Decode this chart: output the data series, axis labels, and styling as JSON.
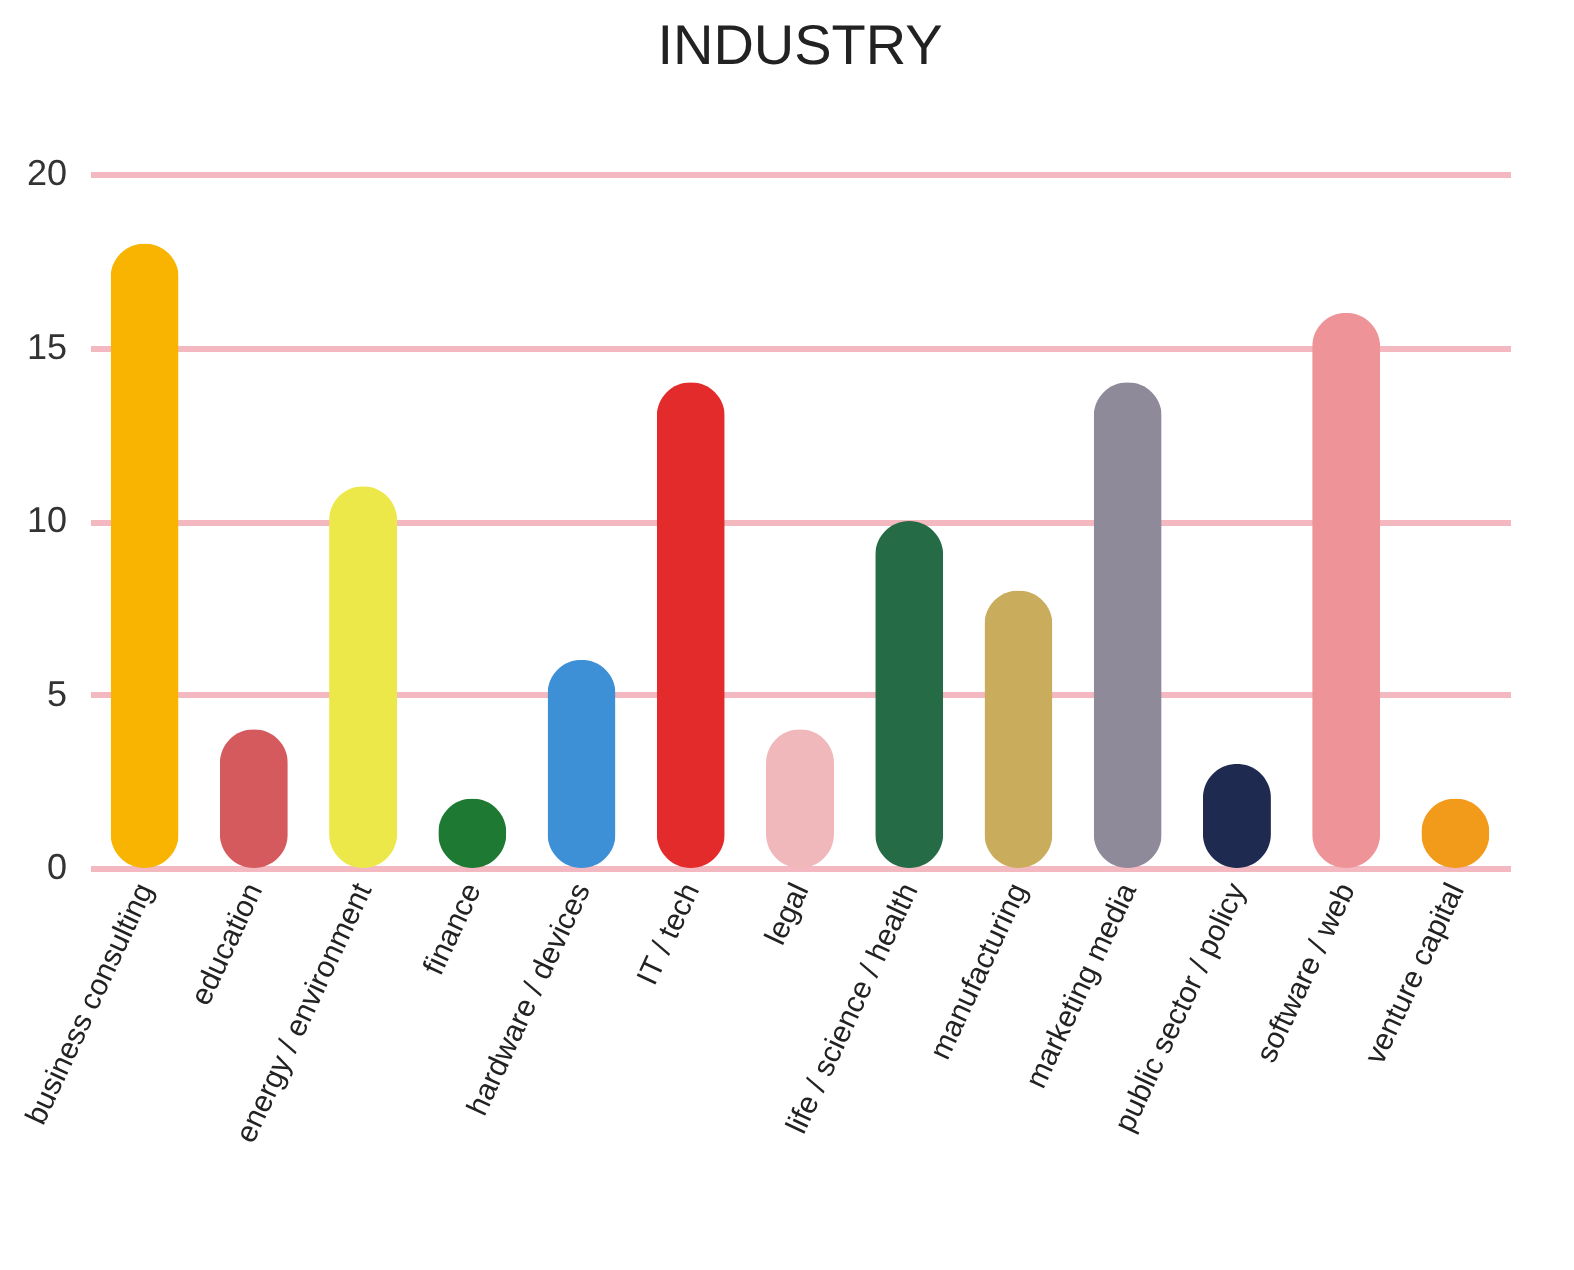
{
  "chart_data": {
    "type": "bar",
    "title": "INDUSTRY",
    "categories": [
      "business consulting",
      "education",
      "energy / environment",
      "finance",
      "hardware / devices",
      "IT / tech",
      "legal",
      "life / science / health",
      "manufacturing",
      "marketing media",
      "public sector / policy",
      "software / web",
      "venture capital"
    ],
    "values": [
      18,
      4,
      11,
      2,
      6,
      14,
      4,
      10,
      8,
      14,
      3,
      16,
      2
    ],
    "colors": [
      "#f8b400",
      "#d45a5e",
      "#ede84a",
      "#1e7a32",
      "#3d8fd6",
      "#e32b2b",
      "#f0b8bb",
      "#256b45",
      "#c9ad5c",
      "#8f8a9a",
      "#1e2a4f",
      "#ee9498",
      "#f29a1a"
    ],
    "ylim": [
      0,
      20
    ],
    "yticks": [
      0,
      5,
      10,
      15,
      20
    ],
    "grid": "y"
  }
}
